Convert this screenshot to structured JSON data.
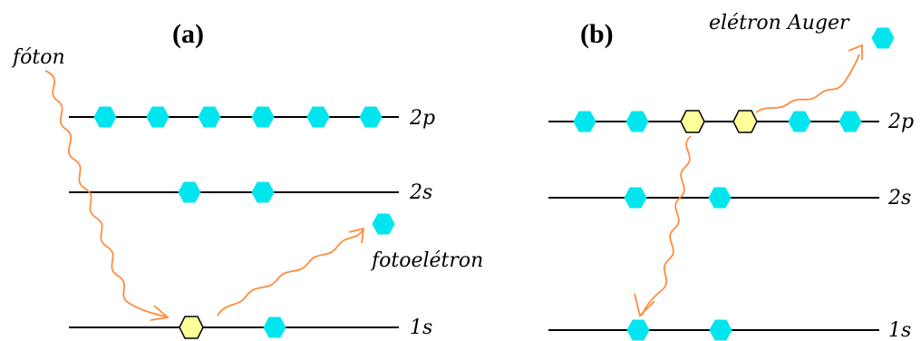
{
  "panels": {
    "a": {
      "label": "(a)",
      "photon_label": "fóton",
      "photoelectron_label": "fotoelétron",
      "levels": [
        "2p",
        "2s",
        "1s"
      ]
    },
    "b": {
      "label": "(b)",
      "auger_label": "elétron Auger",
      "levels": [
        "2p",
        "2s",
        "1s"
      ]
    }
  },
  "colors": {
    "electron": "#00e5ee",
    "hole": "#ffff99",
    "photon_wave": "#ff8c40",
    "level_line": "#000000"
  }
}
